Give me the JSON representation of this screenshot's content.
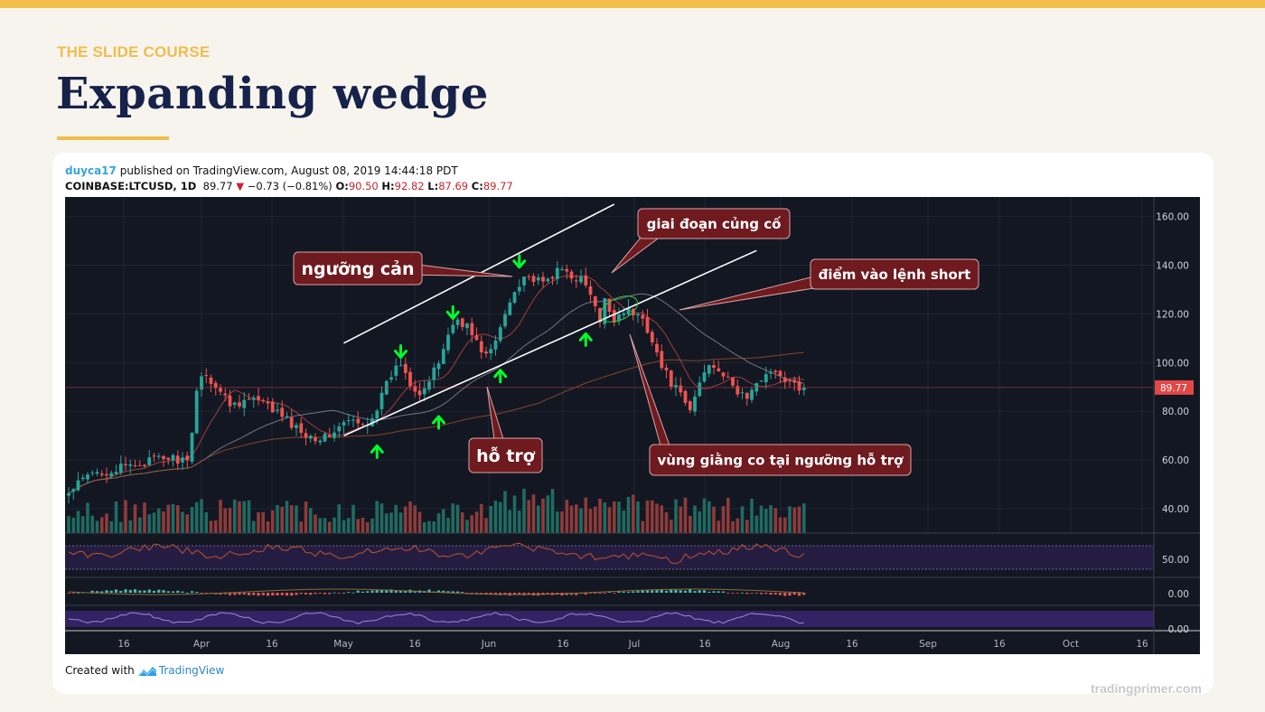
{
  "slide": {
    "kicker": "THE SLIDE COURSE",
    "title": "Expanding wedge",
    "site": "tradingprimer.com",
    "accent_color": "#efbd4c",
    "title_color": "#17224a"
  },
  "header": {
    "user": "duyca17",
    "published": "published on TradingView.com, August 08, 2019 14:44:18 PDT",
    "symbol": "COINBASE:LTCUSD, 1D",
    "last": "89.77",
    "change": "−0.73 (−0.81%)",
    "o_label": "O:",
    "o": "90.50",
    "h_label": "H:",
    "h": "92.82",
    "l_label": "L:",
    "l": "87.69",
    "c_label": "C:",
    "c": "89.77"
  },
  "footer": {
    "created_with": "Created with",
    "brand": "TradingView"
  },
  "chart_data": {
    "type": "candlestick",
    "symbol": "COINBASE:LTCUSD",
    "interval": "1D",
    "ylim": [
      30,
      168
    ],
    "y_ticks": [
      "160.00",
      "140.00",
      "120.00",
      "100.00",
      "80.00",
      "60.00",
      "40.00"
    ],
    "x_ticks": [
      "16",
      "Apr",
      "16",
      "May",
      "16",
      "Jun",
      "16",
      "Jul",
      "16",
      "Aug",
      "16",
      "Sep",
      "16",
      "Oct",
      "16"
    ],
    "rsi_ticks": [
      "50.00"
    ],
    "macd_ticks": [
      "0.00"
    ],
    "osc_ticks": [
      "0.00"
    ],
    "last_price": 89.77,
    "last_price_label": "89.77",
    "close_path": [
      [
        0,
        46
      ],
      [
        3,
        52
      ],
      [
        6,
        55
      ],
      [
        10,
        56
      ],
      [
        14,
        58
      ],
      [
        18,
        60
      ],
      [
        21,
        61
      ],
      [
        24,
        60
      ],
      [
        25,
        58
      ],
      [
        26,
        70
      ],
      [
        27,
        90
      ],
      [
        28,
        95
      ],
      [
        30,
        93
      ],
      [
        32,
        88
      ],
      [
        34,
        83
      ],
      [
        36,
        84
      ],
      [
        39,
        85
      ],
      [
        42,
        82
      ],
      [
        45,
        78
      ],
      [
        48,
        73
      ],
      [
        51,
        70
      ],
      [
        54,
        69
      ],
      [
        56,
        72
      ],
      [
        59,
        76
      ],
      [
        62,
        74
      ],
      [
        64,
        78
      ],
      [
        66,
        86
      ],
      [
        68,
        95
      ],
      [
        70,
        100
      ],
      [
        72,
        92
      ],
      [
        74,
        88
      ],
      [
        76,
        92
      ],
      [
        78,
        100
      ],
      [
        80,
        112
      ],
      [
        82,
        118
      ],
      [
        84,
        115
      ],
      [
        86,
        108
      ],
      [
        88,
        103
      ],
      [
        90,
        108
      ],
      [
        92,
        120
      ],
      [
        94,
        130
      ],
      [
        96,
        136
      ],
      [
        98,
        134
      ],
      [
        100,
        132
      ],
      [
        102,
        136
      ],
      [
        104,
        138
      ],
      [
        106,
        136
      ],
      [
        108,
        134
      ],
      [
        110,
        128
      ],
      [
        112,
        116
      ],
      [
        113,
        125
      ],
      [
        115,
        118
      ],
      [
        117,
        122
      ],
      [
        119,
        120
      ],
      [
        121,
        118
      ],
      [
        123,
        110
      ],
      [
        125,
        98
      ],
      [
        127,
        92
      ],
      [
        129,
        86
      ],
      [
        131,
        80
      ],
      [
        133,
        92
      ],
      [
        135,
        100
      ],
      [
        137,
        98
      ],
      [
        139,
        92
      ],
      [
        141,
        88
      ],
      [
        143,
        86
      ],
      [
        145,
        90
      ],
      [
        147,
        97
      ],
      [
        149,
        95
      ],
      [
        151,
        93
      ],
      [
        153,
        90
      ],
      [
        155,
        89.77
      ]
    ],
    "trendlines": [
      {
        "name": "resistance",
        "from": [
          58,
          108
        ],
        "to": [
          115,
          165
        ]
      },
      {
        "name": "support",
        "from": [
          58,
          70
        ],
        "to": [
          145,
          146
        ]
      }
    ],
    "annotations": [
      {
        "text": "ngưỡng cản"
      },
      {
        "text": "giai đoạn củng cố"
      },
      {
        "text": "điểm vào lệnh short"
      },
      {
        "text": "hỗ trợ"
      },
      {
        "text": "vùng giằng co tại ngưỡng hỗ trợ"
      }
    ],
    "down_arrows": [
      [
        70,
        104
      ],
      [
        81,
        120
      ],
      [
        95,
        141
      ]
    ],
    "up_arrows": [
      [
        65,
        64
      ],
      [
        78,
        76
      ],
      [
        91,
        95
      ],
      [
        109,
        110
      ]
    ],
    "colors": {
      "background": "#131722",
      "up": "#26a69a",
      "down": "#ef5350",
      "arrows": "#00ff2a",
      "label_bg": "#6e1a1f",
      "trendline": "#ffffff"
    }
  }
}
